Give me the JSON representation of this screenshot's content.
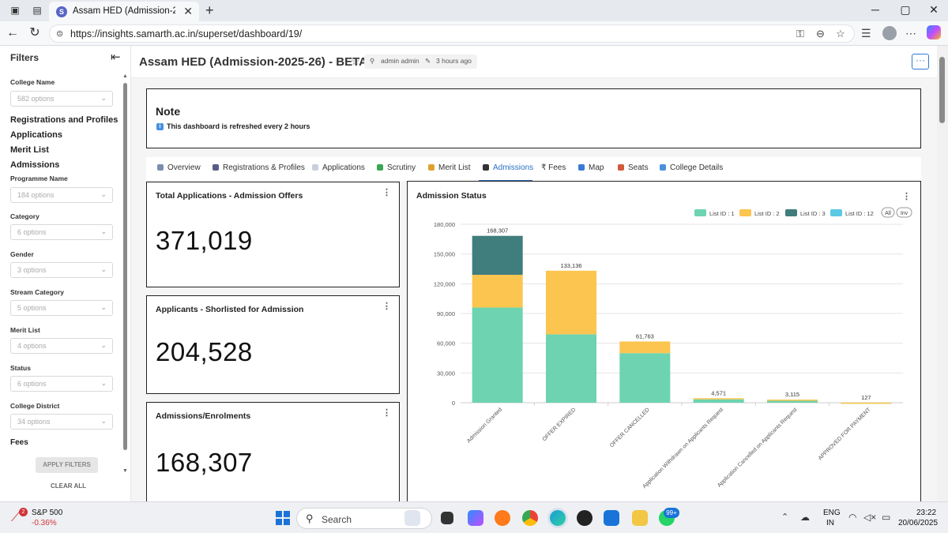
{
  "browser": {
    "tab_title": "Assam HED (Admission-2025-26)",
    "url": "https://insights.samarth.ac.in/superset/dashboard/19/"
  },
  "sidebar": {
    "title": "Filters",
    "filters_top": [
      {
        "label": "College Name",
        "value": "582 options"
      }
    ],
    "sections": [
      "Registrations and Profiles",
      "Applications",
      "Merit List",
      "Admissions"
    ],
    "filters": [
      {
        "label": "Programme Name",
        "value": "184 options"
      },
      {
        "label": "Category",
        "value": "6 options"
      },
      {
        "label": "Gender",
        "value": "3 options"
      },
      {
        "label": "Stream Category",
        "value": "5 options"
      },
      {
        "label": "Merit List",
        "value": "4 options"
      },
      {
        "label": "Status",
        "value": "6 options"
      },
      {
        "label": "College District",
        "value": "34 options"
      }
    ],
    "fees_section": "Fees",
    "apply_label": "APPLY FILTERS",
    "clear_label": "CLEAR ALL"
  },
  "header": {
    "title": "Assam HED (Admission-2025-26) - BETA",
    "owner": "admin admin",
    "modified": "3 hours ago"
  },
  "note": {
    "title": "Note",
    "text": "This dashboard is refreshed every 2 hours"
  },
  "tabs": [
    {
      "label": "Overview",
      "color": "#7a8fb0"
    },
    {
      "label": "Registrations & Profiles",
      "color": "#5a5a8a"
    },
    {
      "label": "Applications",
      "color": "#c9cfe0"
    },
    {
      "label": "Scrutiny",
      "color": "#3aa655"
    },
    {
      "label": "Merit List",
      "color": "#e0a030"
    },
    {
      "label": "Admissions",
      "color": "#333333"
    },
    {
      "label": "₹ Fees",
      "color": "#ffffff"
    },
    {
      "label": "Map",
      "color": "#3a7bd5"
    },
    {
      "label": "Seats",
      "color": "#d05a3a"
    },
    {
      "label": "College Details",
      "color": "#4a90e2"
    }
  ],
  "kpis": [
    {
      "title": "Total Applications - Admission Offers",
      "value": "371,019"
    },
    {
      "title": "Applicants - Shorlisted for Admission",
      "value": "204,528"
    },
    {
      "title": "Admissions/Enrolments",
      "value": "168,307"
    }
  ],
  "chart_panel": {
    "title": "Admission Status",
    "legend_all": "All",
    "legend_inv": "Inv"
  },
  "chart_data": {
    "type": "bar",
    "stacked": true,
    "categories": [
      "Admission Granted",
      "OFFER EXPIRED",
      "OFFER CANCELLED",
      "Application Withdrawn on Applicants Request",
      "Application Cancelled on Applicants Request",
      "APPROVED FOR PAYMENT"
    ],
    "series": [
      {
        "name": "List ID : 1",
        "color": "#6dd3b0",
        "values": [
          96000,
          69000,
          50000,
          3400,
          2300,
          100
        ]
      },
      {
        "name": "List ID : 2",
        "color": "#fbc54f",
        "values": [
          33000,
          64136,
          11763,
          1171,
          815,
          27
        ]
      },
      {
        "name": "List ID : 3",
        "color": "#407d7d",
        "values": [
          39307,
          0,
          0,
          0,
          0,
          0
        ]
      },
      {
        "name": "List ID : 12",
        "color": "#5bc8e4",
        "values": [
          0,
          0,
          0,
          0,
          0,
          0
        ]
      }
    ],
    "totals": [
      "168,307",
      "133,136",
      "61,763",
      "4,571",
      "3,115",
      "127"
    ],
    "yticks": [
      "0",
      "30,000",
      "60,000",
      "90,000",
      "120,000",
      "150,000",
      "180,000"
    ],
    "ylim": [
      0,
      180000
    ],
    "grid": true,
    "legend_position": "top-right"
  },
  "taskbar": {
    "stock_name": "S&P 500",
    "stock_change": "-0.36%",
    "stock_badge": "2",
    "search_placeholder": "Search",
    "app_badge": "99+",
    "lang_1": "ENG",
    "lang_2": "IN",
    "time": "23:22",
    "date": "20/06/2025"
  }
}
